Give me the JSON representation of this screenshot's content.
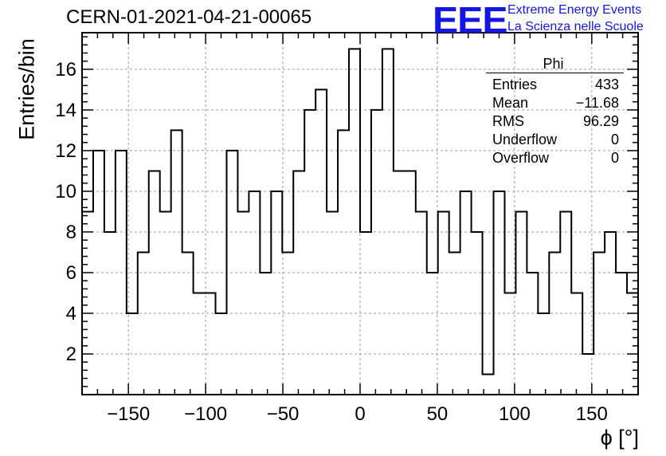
{
  "title": "CERN-01-2021-04-21-00065",
  "logo": {
    "mark": "EEE",
    "line1": "Extreme Energy Events",
    "line2": "La Scienza nelle Scuole",
    "color": "#1515e6"
  },
  "stats_box": {
    "name": "Phi",
    "rows": [
      {
        "label": "Entries",
        "value": "433"
      },
      {
        "label": "Mean",
        "value": "−11.68"
      },
      {
        "label": "RMS",
        "value": "96.29"
      },
      {
        "label": "Underflow",
        "value": "0"
      },
      {
        "label": "Overflow",
        "value": "0"
      }
    ]
  },
  "chart_data": {
    "type": "bar",
    "style": "step-histogram",
    "title": "CERN-01-2021-04-21-00065",
    "xlabel": "ϕ [°]",
    "ylabel": "Entries/bin",
    "xlim": [
      -180,
      180
    ],
    "ylim": [
      0,
      17.8
    ],
    "bin_width": 7.2,
    "bin_edges_start": -180,
    "values": [
      9,
      12,
      8,
      12,
      4,
      7,
      11,
      9,
      13,
      7,
      5,
      5,
      4,
      12,
      9,
      10,
      6,
      10,
      7,
      11,
      14,
      15,
      9,
      13,
      17,
      8,
      14,
      17,
      11,
      11,
      9,
      6,
      9,
      7,
      10,
      8,
      1,
      10,
      5,
      9,
      6,
      4,
      7,
      9,
      5,
      2,
      7,
      8,
      6,
      5
    ],
    "xticks": [
      -150,
      -100,
      -50,
      0,
      50,
      100,
      150
    ],
    "xtick_labels": [
      "−150",
      "−100",
      "−50",
      "0",
      "50",
      "100",
      "150"
    ],
    "yticks": [
      2,
      4,
      6,
      8,
      10,
      12,
      14,
      16
    ],
    "ytick_labels": [
      "2",
      "4",
      "6",
      "8",
      "10",
      "12",
      "14",
      "16"
    ],
    "grid": true,
    "line_color": "#000000"
  }
}
